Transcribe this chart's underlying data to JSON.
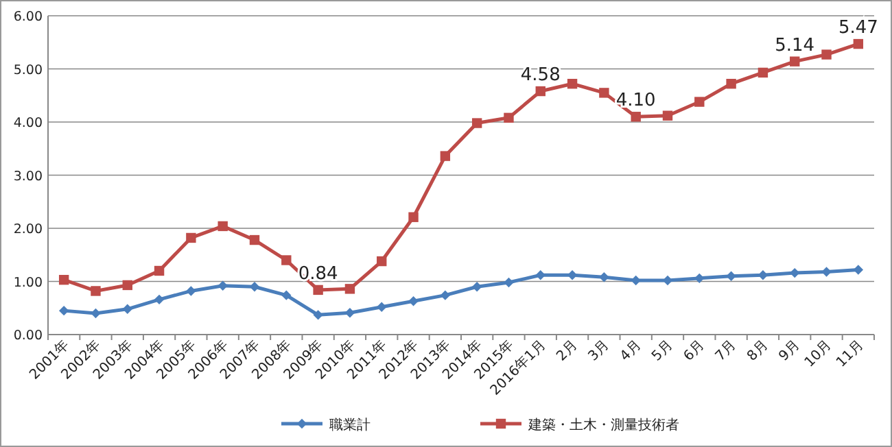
{
  "chart_data": {
    "type": "line",
    "categories": [
      "2001年",
      "2002年",
      "2003年",
      "2004年",
      "2005年",
      "2006年",
      "2007年",
      "2008年",
      "2009年",
      "2010年",
      "2011年",
      "2012年",
      "2013年",
      "2014年",
      "2015年",
      "2016年1月",
      "2月",
      "3月",
      "4月",
      "5月",
      "6月",
      "7月",
      "8月",
      "9月",
      "10月",
      "11月"
    ],
    "series": [
      {
        "name": "職業計",
        "color": "#4a7ebb",
        "marker": "diamond",
        "values": [
          0.45,
          0.4,
          0.48,
          0.66,
          0.82,
          0.92,
          0.9,
          0.74,
          0.37,
          0.41,
          0.52,
          0.63,
          0.74,
          0.9,
          0.98,
          1.12,
          1.12,
          1.08,
          1.02,
          1.02,
          1.06,
          1.1,
          1.12,
          1.16,
          1.18,
          1.22
        ]
      },
      {
        "name": "建築・土木・測量技術者",
        "color": "#be4b48",
        "marker": "square",
        "values": [
          1.03,
          0.82,
          0.93,
          1.2,
          1.82,
          2.04,
          1.78,
          1.4,
          0.84,
          0.86,
          1.38,
          2.21,
          3.36,
          3.98,
          4.08,
          4.58,
          4.72,
          4.55,
          4.1,
          4.12,
          4.38,
          4.72,
          4.93,
          5.14,
          5.27,
          5.47
        ],
        "value_labels": [
          null,
          null,
          null,
          null,
          null,
          null,
          null,
          null,
          "0.84",
          null,
          null,
          null,
          null,
          null,
          null,
          "4.58",
          null,
          null,
          "4.10",
          null,
          null,
          null,
          null,
          "5.14",
          null,
          "5.47"
        ]
      }
    ],
    "ylim": [
      0,
      6
    ],
    "yticks": [
      {
        "value": 0,
        "label": "0.00"
      },
      {
        "value": 1,
        "label": "1.00"
      },
      {
        "value": 2,
        "label": "2.00"
      },
      {
        "value": 3,
        "label": "3.00"
      },
      {
        "value": 4,
        "label": "4.00"
      },
      {
        "value": 5,
        "label": "5.00"
      },
      {
        "value": 6,
        "label": "6.00"
      }
    ],
    "grid": "y",
    "legend": "bottom"
  }
}
